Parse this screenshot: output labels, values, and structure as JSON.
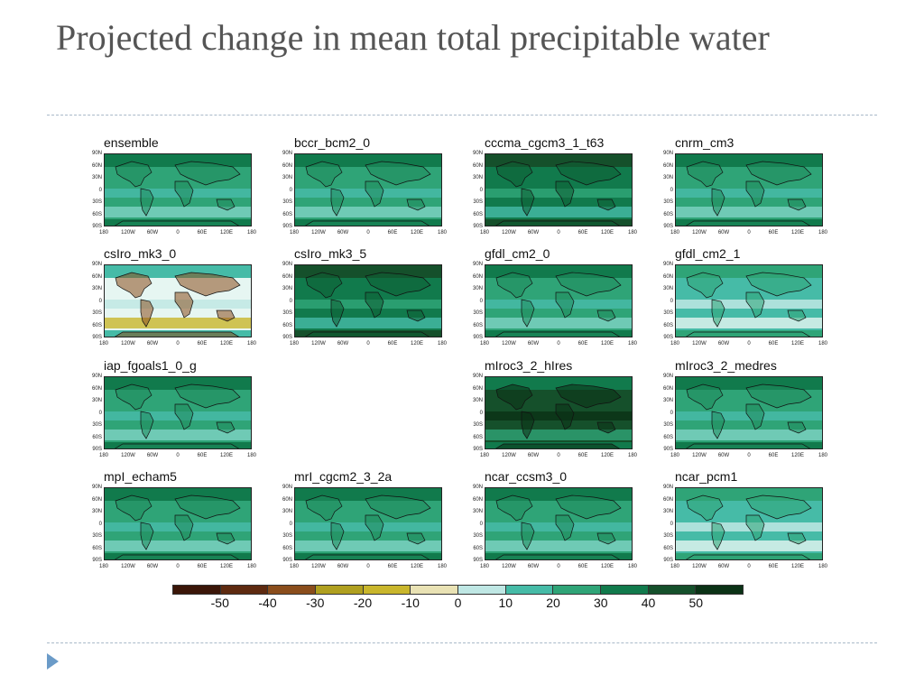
{
  "slide": {
    "title": "Projected change in mean total precipitable water"
  },
  "axes": {
    "y_ticks": [
      "90N",
      "60N",
      "30N",
      "0",
      "30S",
      "60S",
      "90S"
    ],
    "x_ticks": [
      "180",
      "120W",
      "60W",
      "0",
      "60E",
      "120E",
      "180"
    ]
  },
  "panels": [
    {
      "label": "ensemble",
      "style": "green"
    },
    {
      "label": "bccr_bcm2_0",
      "style": "green"
    },
    {
      "label": "cccma_cgcm3_1_t63",
      "style": "darkgreen"
    },
    {
      "label": "cnrm_cm3",
      "style": "green"
    },
    {
      "label": "csIro_mk3_0",
      "style": "pale"
    },
    {
      "label": "csIro_mk3_5",
      "style": "darkgreen"
    },
    {
      "label": "gfdl_cm2_0",
      "style": "green"
    },
    {
      "label": "gfdl_cm2_1",
      "style": "lightgreen"
    },
    {
      "label": "iap_fgoals1_0_g",
      "style": "green"
    },
    {
      "label": "",
      "style": "empty"
    },
    {
      "label": "mIroc3_2_hIres",
      "style": "darkest"
    },
    {
      "label": "mIroc3_2_medres",
      "style": "green"
    },
    {
      "label": "mpI_echam5",
      "style": "green"
    },
    {
      "label": "mrI_cgcm2_3_2a",
      "style": "green"
    },
    {
      "label": "ncar_ccsm3_0",
      "style": "green"
    },
    {
      "label": "ncar_pcm1",
      "style": "lightgreen"
    }
  ],
  "colorbar": {
    "colors": [
      "#3b1608",
      "#5e2a10",
      "#8a4d1c",
      "#b0a020",
      "#c9b62c",
      "#e9e2b4",
      "#bfe7e4",
      "#46bba7",
      "#2fa477",
      "#117a4c",
      "#15502b",
      "#0b3216"
    ],
    "tick_labels": [
      "-50",
      "-40",
      "-30",
      "-20",
      "-10",
      "0",
      "10",
      "20",
      "30",
      "40",
      "50"
    ],
    "tick_values": [
      -50,
      -40,
      -30,
      -20,
      -10,
      0,
      10,
      20,
      30,
      40,
      50
    ]
  }
}
